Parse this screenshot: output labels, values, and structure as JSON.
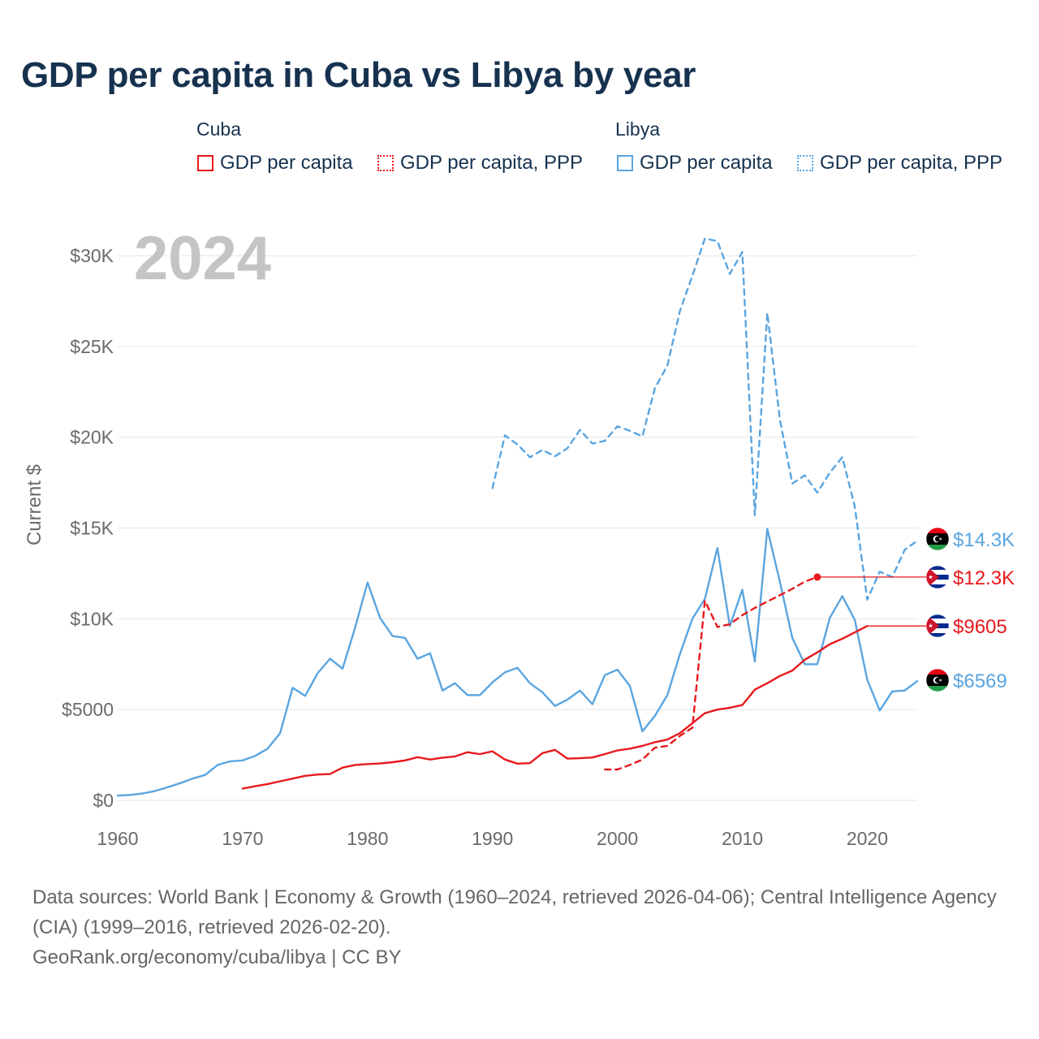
{
  "title": "GDP per capita in Cuba vs Libya by year",
  "colors": {
    "cuba": "#e8191c",
    "libya": "#5aa5e0",
    "grid": "#e6e6e6",
    "axis_text": "#6a6a6a",
    "year_text": "#c4c4c4"
  },
  "legend": {
    "groups": [
      {
        "label": "Cuba",
        "items": [
          {
            "label": "GDP per capita",
            "color": "#e8191c",
            "style": "solid"
          },
          {
            "label": "GDP per capita, PPP",
            "color": "#e8191c",
            "style": "dotted"
          }
        ]
      },
      {
        "label": "Libya",
        "items": [
          {
            "label": "GDP per capita",
            "color": "#5aa5e0",
            "style": "solid"
          },
          {
            "label": "GDP per capita, PPP",
            "color": "#5aa5e0",
            "style": "dotted"
          }
        ]
      }
    ]
  },
  "chart_data": {
    "type": "line",
    "title": "GDP per capita in Cuba vs Libya by year",
    "ylabel": "Current $",
    "xlabel": "",
    "year_watermark": "2024",
    "xlim": [
      1960,
      2024
    ],
    "ylim": [
      0,
      32000
    ],
    "x_ticks": [
      1960,
      1970,
      1980,
      1990,
      2000,
      2010,
      2020
    ],
    "y_ticks": [
      {
        "value": 0,
        "label": "$0"
      },
      {
        "value": 5000,
        "label": "$5000"
      },
      {
        "value": 10000,
        "label": "$10K"
      },
      {
        "value": 15000,
        "label": "$15K"
      },
      {
        "value": 20000,
        "label": "$20K"
      },
      {
        "value": 25000,
        "label": "$25K"
      },
      {
        "value": 30000,
        "label": "$30K"
      }
    ],
    "grid": true,
    "series": [
      {
        "name": "Libya GDP per capita",
        "country": "Libya",
        "color": "#5aa5e0",
        "dash": "solid",
        "end_label": "$6569",
        "flag": "libya",
        "x": [
          1960,
          1961,
          1962,
          1963,
          1964,
          1965,
          1966,
          1967,
          1968,
          1969,
          1970,
          1971,
          1972,
          1973,
          1974,
          1975,
          1976,
          1977,
          1978,
          1979,
          1980,
          1981,
          1982,
          1983,
          1984,
          1985,
          1986,
          1987,
          1988,
          1989,
          1990,
          1991,
          1992,
          1993,
          1994,
          1995,
          1996,
          1997,
          1998,
          1999,
          2000,
          2001,
          2002,
          2003,
          2004,
          2005,
          2006,
          2007,
          2008,
          2009,
          2010,
          2011,
          2012,
          2013,
          2014,
          2015,
          2016,
          2017,
          2018,
          2019,
          2020,
          2021,
          2022,
          2023,
          2024
        ],
        "values": [
          260,
          300,
          380,
          520,
          720,
          950,
          1200,
          1400,
          1950,
          2150,
          2200,
          2450,
          2850,
          3700,
          6200,
          5750,
          7000,
          7800,
          7250,
          9500,
          12000,
          10050,
          9050,
          8950,
          7800,
          8100,
          6050,
          6450,
          5800,
          5800,
          6500,
          7050,
          7300,
          6450,
          5950,
          5200,
          5550,
          6050,
          5300,
          6900,
          7200,
          6300,
          3800,
          4650,
          5800,
          8050,
          10000,
          11100,
          13900,
          9600,
          11600,
          7650,
          14950,
          12050,
          8950,
          7500,
          7500,
          10050,
          11250,
          9950,
          6650,
          4950,
          6000,
          6050,
          6569
        ]
      },
      {
        "name": "Libya GDP per capita, PPP",
        "country": "Libya",
        "color": "#5aa5e0",
        "dash": "dashed",
        "end_label": "$14.3K",
        "flag": "libya",
        "x": [
          1990,
          1991,
          1992,
          1993,
          1994,
          1995,
          1996,
          1997,
          1998,
          1999,
          2000,
          2001,
          2002,
          2003,
          2004,
          2005,
          2006,
          2007,
          2008,
          2009,
          2010,
          2011,
          2012,
          2013,
          2014,
          2015,
          2016,
          2017,
          2018,
          2019,
          2020,
          2021,
          2022,
          2023,
          2024
        ],
        "values": [
          17200,
          20100,
          19600,
          18900,
          19300,
          18950,
          19400,
          20400,
          19650,
          19800,
          20600,
          20350,
          20050,
          22700,
          23950,
          26950,
          28900,
          30950,
          30800,
          29000,
          30200,
          15700,
          26850,
          21000,
          17450,
          17900,
          16950,
          18050,
          18900,
          16200,
          11050,
          12600,
          12300,
          13800,
          14300
        ]
      },
      {
        "name": "Cuba GDP per capita",
        "country": "Cuba",
        "color": "#e8191c",
        "dash": "solid",
        "end_label": "$9605",
        "flag": "cuba",
        "x": [
          1970,
          1971,
          1972,
          1973,
          1974,
          1975,
          1976,
          1977,
          1978,
          1979,
          1980,
          1981,
          1982,
          1983,
          1984,
          1985,
          1986,
          1987,
          1988,
          1989,
          1990,
          1991,
          1992,
          1993,
          1994,
          1995,
          1996,
          1997,
          1998,
          1999,
          2000,
          2001,
          2002,
          2003,
          2004,
          2005,
          2006,
          2007,
          2008,
          2009,
          2010,
          2011,
          2012,
          2013,
          2014,
          2015,
          2016,
          2017,
          2018,
          2019,
          2020
        ],
        "values": [
          650,
          780,
          900,
          1050,
          1200,
          1350,
          1420,
          1450,
          1800,
          1950,
          2000,
          2030,
          2100,
          2200,
          2380,
          2250,
          2350,
          2420,
          2650,
          2550,
          2700,
          2250,
          2020,
          2050,
          2600,
          2780,
          2300,
          2320,
          2360,
          2550,
          2750,
          2850,
          3000,
          3200,
          3350,
          3700,
          4250,
          4800,
          5000,
          5100,
          5250,
          6100,
          6450,
          6850,
          7150,
          7750,
          8150,
          8600,
          8900,
          9250,
          9605
        ]
      },
      {
        "name": "Cuba GDP per capita, PPP",
        "country": "Cuba",
        "color": "#e8191c",
        "dash": "dashed",
        "end_label": "$12.3K",
        "flag": "cuba",
        "x": [
          1999,
          2000,
          2001,
          2002,
          2003,
          2004,
          2005,
          2006,
          2007,
          2008,
          2009,
          2010,
          2011,
          2012,
          2013,
          2014,
          2015,
          2016
        ],
        "values": [
          1700,
          1700,
          1950,
          2250,
          2900,
          3000,
          3550,
          4000,
          11000,
          9550,
          9700,
          10200,
          10600,
          10950,
          11300,
          11650,
          12050,
          12300
        ]
      }
    ]
  },
  "footer": {
    "sources": "Data sources: World Bank | Economy & Growth (1960–2024, retrieved 2026-04-06); Central Intelligence Agency (CIA) (1999–2016, retrieved 2026-02-20).",
    "attribution": "GeoRank.org/economy/cuba/libya | CC BY"
  }
}
